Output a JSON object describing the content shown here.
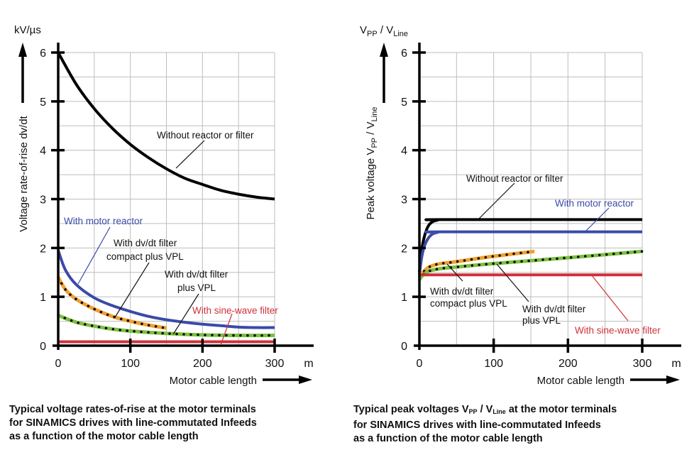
{
  "chart_data": [
    {
      "type": "line",
      "title": "Typical voltage rates-of-rise at the motor terminals for SINAMICS drives with line-commutated Infeeds as a function of the motor cable length",
      "caption_lines": [
        "Typical voltage rates-of-rise at the motor terminals",
        "for SINAMICS drives with line-commutated Infeeds",
        "as a function of the motor cable length"
      ],
      "xlabel": "Motor cable length",
      "xunit": "m",
      "ylabel": "Voltage rate-of-rise dv/dt",
      "yunit": "kV/µs",
      "xlim": [
        0,
        300
      ],
      "ylim": [
        0,
        6
      ],
      "xticks": [
        "0",
        "100",
        "200",
        "300"
      ],
      "yticks": [
        "0",
        "1",
        "2",
        "3",
        "4",
        "5",
        "6"
      ],
      "grid": true,
      "series": [
        {
          "name": "Without reactor or filter",
          "label_lines": [
            "Without reactor or filter"
          ],
          "color": "#000000",
          "style": "solid",
          "x": [
            0,
            25,
            50,
            75,
            100,
            125,
            150,
            175,
            200,
            225,
            250,
            275,
            300
          ],
          "y": [
            6.0,
            5.35,
            4.85,
            4.45,
            4.12,
            3.85,
            3.62,
            3.43,
            3.3,
            3.18,
            3.1,
            3.04,
            3.0
          ]
        },
        {
          "name": "With motor reactor",
          "label_lines": [
            "With motor reactor"
          ],
          "color": "#3a4aa8",
          "style": "solid",
          "x": [
            0,
            10,
            25,
            50,
            75,
            100,
            125,
            150,
            175,
            200,
            225,
            250,
            275,
            300
          ],
          "y": [
            1.95,
            1.55,
            1.25,
            0.98,
            0.82,
            0.7,
            0.6,
            0.53,
            0.48,
            0.44,
            0.41,
            0.38,
            0.37,
            0.37
          ]
        },
        {
          "name": "With dv/dt filter compact plus VPL",
          "label_lines": [
            "With dv/dt filter",
            "compact plus VPL"
          ],
          "color": "#f0a030",
          "style": "dotted",
          "x": [
            0,
            10,
            25,
            50,
            75,
            100,
            125,
            150
          ],
          "y": [
            1.4,
            1.15,
            0.95,
            0.75,
            0.6,
            0.5,
            0.42,
            0.36
          ]
        },
        {
          "name": "With dv/dt filter plus VPL",
          "label_lines": [
            "With dv/dt filter",
            "plus VPL"
          ],
          "color": "#7cc040",
          "style": "dotted",
          "x": [
            0,
            25,
            50,
            75,
            100,
            150,
            200,
            250,
            300
          ],
          "y": [
            0.62,
            0.48,
            0.4,
            0.34,
            0.3,
            0.25,
            0.22,
            0.21,
            0.21
          ]
        },
        {
          "name": "With sine-wave filter",
          "label_lines": [
            "With sine-wave filter"
          ],
          "color": "#d0303a",
          "style": "solid",
          "x": [
            0,
            300
          ],
          "y": [
            0.08,
            0.08
          ]
        }
      ]
    },
    {
      "type": "line",
      "title": "Typical peak voltages VPP / VLine at the motor terminals for SINAMICS drives with line-commutated Infeeds as a function of the motor cable length",
      "caption_lines": [
        "Typical peak voltages V|PP| / V|Line| at the motor terminals",
        "for SINAMICS drives with line-commutated Infeeds",
        "as a function of the motor cable length"
      ],
      "xlabel": "Motor cable length",
      "xunit": "m",
      "ylabel": "Peak voltage VPP / VLine",
      "yunit": "VPP / VLine",
      "xlim": [
        0,
        300
      ],
      "ylim": [
        0,
        6
      ],
      "xticks": [
        "0",
        "100",
        "200",
        "300"
      ],
      "yticks": [
        "0",
        "1",
        "2",
        "3",
        "4",
        "5",
        "6"
      ],
      "grid": true,
      "series": [
        {
          "name": "Without reactor or filter",
          "label_lines": [
            "Without reactor or filter"
          ],
          "color": "#000000",
          "style": "solid",
          "x": [
            0,
            3,
            7,
            12,
            18,
            25,
            30,
            300
          ],
          "y": [
            1.5,
            1.95,
            2.25,
            2.45,
            2.54,
            2.57,
            2.58,
            2.58
          ]
        },
        {
          "name": "With motor reactor",
          "label_lines": [
            "With motor reactor"
          ],
          "color": "#3a4aa8",
          "style": "solid",
          "x": [
            0,
            3,
            7,
            12,
            18,
            25,
            30,
            300
          ],
          "y": [
            1.45,
            1.8,
            2.05,
            2.2,
            2.29,
            2.32,
            2.33,
            2.33
          ]
        },
        {
          "name": "With dv/dt filter compact plus VPL",
          "label_lines": [
            "With dv/dt filter",
            "compact plus VPL"
          ],
          "color": "#f0a030",
          "style": "dotted",
          "x": [
            0,
            5,
            12,
            25,
            50,
            100,
            155
          ],
          "y": [
            1.42,
            1.5,
            1.6,
            1.67,
            1.72,
            1.83,
            1.93
          ]
        },
        {
          "name": "With dv/dt filter plus VPL",
          "label_lines": [
            "With dv/dt filter",
            "plus VPL"
          ],
          "color": "#7cc040",
          "style": "dotted",
          "x": [
            0,
            5,
            12,
            25,
            50,
            100,
            200,
            300
          ],
          "y": [
            1.35,
            1.45,
            1.52,
            1.57,
            1.61,
            1.68,
            1.8,
            1.93
          ]
        },
        {
          "name": "With sine-wave filter",
          "label_lines": [
            "With sine-wave filter"
          ],
          "color": "#d0303a",
          "style": "solid",
          "x": [
            0,
            300
          ],
          "y": [
            1.45,
            1.45
          ]
        }
      ]
    }
  ]
}
